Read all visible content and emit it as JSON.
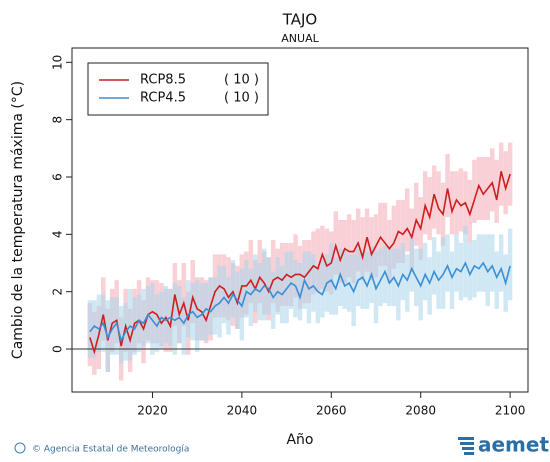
{
  "chart_data": {
    "type": "line",
    "title": "TAJO",
    "subtitle": "ANUAL",
    "y_label": "Cambio de la temperatura máxima (°C)",
    "x_label": "Año",
    "credit": "© Agencia Estatal de Meteorología",
    "logo": "aemet",
    "xlim": [
      2002,
      2104
    ],
    "xticks": [
      2020,
      2040,
      2060,
      2080,
      2100
    ],
    "ylim": [
      -1.5,
      10.5
    ],
    "yticks": [
      0,
      2,
      4,
      6,
      8,
      10
    ],
    "legend_position": "upper left",
    "x": [
      2006,
      2007,
      2008,
      2009,
      2010,
      2011,
      2012,
      2013,
      2014,
      2015,
      2016,
      2017,
      2018,
      2019,
      2020,
      2021,
      2022,
      2023,
      2024,
      2025,
      2026,
      2027,
      2028,
      2029,
      2030,
      2031,
      2032,
      2033,
      2034,
      2035,
      2036,
      2037,
      2038,
      2039,
      2040,
      2041,
      2042,
      2043,
      2044,
      2045,
      2046,
      2047,
      2048,
      2049,
      2050,
      2051,
      2052,
      2053,
      2054,
      2055,
      2056,
      2057,
      2058,
      2059,
      2060,
      2061,
      2062,
      2063,
      2064,
      2065,
      2066,
      2067,
      2068,
      2069,
      2070,
      2071,
      2072,
      2073,
      2074,
      2075,
      2076,
      2077,
      2078,
      2079,
      2080,
      2081,
      2082,
      2083,
      2084,
      2085,
      2086,
      2087,
      2088,
      2089,
      2090,
      2091,
      2092,
      2093,
      2094,
      2095,
      2096,
      2097,
      2098,
      2099,
      2100
    ],
    "series": [
      {
        "name": "RCP8.5",
        "models": "( 10 )",
        "color": "#cc1f1f",
        "band_color": "#f3aab5",
        "values": [
          0.4,
          -0.1,
          0.5,
          1.2,
          0.3,
          0.9,
          1.0,
          0.1,
          0.8,
          0.3,
          0.9,
          1.0,
          0.7,
          1.2,
          1.3,
          1.2,
          0.9,
          1.1,
          0.8,
          1.9,
          1.2,
          1.6,
          1.0,
          1.8,
          1.4,
          1.3,
          1.0,
          1.5,
          2.0,
          2.2,
          2.1,
          1.8,
          2.0,
          1.6,
          2.2,
          2.2,
          2.4,
          2.1,
          2.5,
          2.3,
          2.0,
          2.4,
          2.5,
          2.4,
          2.6,
          2.5,
          2.6,
          2.6,
          2.5,
          2.7,
          2.9,
          2.8,
          3.3,
          2.9,
          3.0,
          3.6,
          3.1,
          3.5,
          3.4,
          3.4,
          3.7,
          3.2,
          3.9,
          3.3,
          3.6,
          3.9,
          3.7,
          3.5,
          3.7,
          4.1,
          4.0,
          4.2,
          3.9,
          4.5,
          4.2,
          5.0,
          4.6,
          5.4,
          4.9,
          4.7,
          5.6,
          4.8,
          5.2,
          5.0,
          5.1,
          4.7,
          5.2,
          5.7,
          5.4,
          5.6,
          5.8,
          5.2,
          6.2,
          5.6,
          6.1
        ],
        "lower": [
          -0.6,
          -0.9,
          -0.7,
          0.3,
          -0.8,
          -0.1,
          0.2,
          -1.1,
          -0.1,
          -0.8,
          -0.1,
          0.2,
          -0.5,
          0.3,
          0.2,
          0.2,
          0.1,
          -0.1,
          -0.1,
          0.8,
          0.2,
          0.8,
          -0.2,
          0.9,
          0.3,
          0.3,
          0.2,
          0.3,
          1.1,
          1.1,
          1.1,
          1.0,
          0.8,
          0.7,
          1.1,
          1.2,
          1.6,
          0.9,
          1.6,
          1.2,
          1.0,
          1.6,
          1.3,
          1.5,
          1.5,
          1.5,
          1.8,
          1.4,
          1.6,
          1.6,
          1.9,
          2.0,
          2.1,
          2.0,
          1.9,
          2.6,
          2.3,
          2.3,
          2.5,
          2.3,
          2.7,
          2.4,
          2.7,
          2.4,
          2.5,
          2.9,
          2.9,
          2.3,
          2.8,
          3.0,
          3.0,
          3.4,
          2.7,
          3.6,
          3.1,
          4.0,
          3.8,
          4.2,
          4.0,
          3.6,
          4.6,
          4.0,
          4.0,
          4.1,
          4.0,
          3.7,
          4.4,
          4.5,
          4.5,
          4.5,
          4.8,
          4.4,
          5.0,
          4.7,
          5.0
        ],
        "upper": [
          1.6,
          1.3,
          1.5,
          2.5,
          1.4,
          2.1,
          2.4,
          1.1,
          2.1,
          1.4,
          2.1,
          2.4,
          1.7,
          2.5,
          2.4,
          2.4,
          2.3,
          2.1,
          2.1,
          3.0,
          2.4,
          3.0,
          2.0,
          3.1,
          2.5,
          2.5,
          2.4,
          2.5,
          3.3,
          3.3,
          3.3,
          3.2,
          3.0,
          2.9,
          3.3,
          3.4,
          3.8,
          3.1,
          3.8,
          3.4,
          3.2,
          3.8,
          3.5,
          3.7,
          3.7,
          3.7,
          4.0,
          3.6,
          3.8,
          3.8,
          4.1,
          4.2,
          4.3,
          4.2,
          4.1,
          4.8,
          4.5,
          4.5,
          4.7,
          4.5,
          4.9,
          4.6,
          4.9,
          4.6,
          4.7,
          5.1,
          5.1,
          4.5,
          5.0,
          5.2,
          5.2,
          5.6,
          4.9,
          5.8,
          5.3,
          6.2,
          6.0,
          6.4,
          6.2,
          5.8,
          6.8,
          6.2,
          6.2,
          6.3,
          6.2,
          5.9,
          6.6,
          6.7,
          6.7,
          6.7,
          7.0,
          6.6,
          7.2,
          6.9,
          7.2
        ]
      },
      {
        "name": "RCP4.5",
        "models": "( 10 )",
        "color": "#3a8fd6",
        "band_color": "#a9d6ec",
        "values": [
          0.6,
          0.8,
          0.7,
          0.9,
          0.4,
          0.7,
          0.9,
          0.3,
          0.6,
          0.8,
          0.7,
          1.0,
          0.9,
          1.2,
          1.0,
          0.8,
          1.1,
          1.0,
          1.1,
          1.0,
          1.1,
          0.9,
          1.2,
          1.3,
          1.1,
          1.2,
          1.4,
          1.3,
          1.5,
          1.6,
          1.8,
          1.6,
          1.9,
          1.7,
          1.5,
          2.0,
          1.9,
          2.1,
          2.0,
          2.2,
          2.1,
          1.8,
          2.0,
          1.9,
          2.1,
          2.3,
          2.2,
          1.8,
          2.4,
          2.1,
          2.2,
          2.0,
          1.9,
          2.3,
          2.4,
          2.1,
          2.6,
          2.2,
          2.3,
          2.0,
          2.4,
          2.5,
          2.2,
          2.6,
          2.1,
          2.4,
          2.7,
          2.3,
          2.5,
          2.2,
          2.6,
          2.4,
          2.8,
          2.5,
          2.2,
          2.6,
          2.3,
          2.7,
          2.4,
          2.6,
          2.9,
          2.5,
          2.8,
          2.7,
          3.0,
          2.6,
          2.9,
          2.8,
          3.0,
          2.7,
          2.9,
          2.5,
          2.8,
          2.3,
          2.9
        ],
        "lower": [
          -0.3,
          -0.3,
          -0.1,
          -0.1,
          -0.8,
          -0.2,
          -0.2,
          -0.5,
          -0.4,
          -0.4,
          -0.2,
          -0.1,
          0.1,
          0.2,
          -0.2,
          -0.1,
          0.0,
          0.2,
          0.1,
          -0.2,
          0.2,
          -0.2,
          0.4,
          0.3,
          -0.1,
          0.3,
          0.3,
          0.5,
          0.5,
          0.4,
          0.9,
          0.5,
          1.1,
          0.7,
          0.3,
          1.1,
          0.8,
          1.3,
          1.0,
          1.0,
          1.2,
          0.7,
          1.2,
          0.9,
          0.9,
          1.4,
          1.1,
          1.0,
          1.4,
          0.9,
          1.3,
          0.9,
          1.1,
          1.3,
          1.2,
          1.2,
          1.5,
          1.4,
          1.3,
          0.8,
          1.5,
          1.4,
          1.4,
          1.6,
          0.9,
          1.5,
          1.6,
          1.5,
          1.5,
          1.0,
          1.7,
          1.3,
          2.0,
          1.5,
          1.0,
          1.7,
          1.2,
          1.9,
          1.4,
          1.4,
          2.0,
          1.4,
          2.0,
          1.7,
          1.8,
          1.7,
          1.8,
          2.0,
          2.0,
          1.5,
          2.0,
          1.4,
          2.0,
          1.3,
          1.7
        ],
        "upper": [
          1.7,
          1.7,
          1.9,
          1.9,
          1.7,
          1.8,
          1.8,
          1.5,
          1.6,
          2.1,
          1.8,
          1.9,
          2.1,
          2.2,
          2.3,
          1.9,
          2.0,
          2.2,
          2.1,
          2.3,
          2.2,
          1.8,
          2.4,
          2.3,
          2.4,
          2.3,
          2.3,
          2.5,
          2.5,
          2.9,
          2.9,
          2.5,
          3.1,
          2.7,
          2.8,
          3.1,
          2.8,
          3.3,
          3.0,
          3.5,
          3.2,
          2.7,
          3.2,
          2.9,
          3.4,
          3.4,
          3.1,
          3.0,
          3.4,
          3.4,
          3.3,
          2.9,
          3.1,
          3.3,
          3.7,
          3.2,
          3.5,
          3.4,
          3.3,
          3.3,
          3.5,
          3.4,
          3.4,
          3.6,
          3.4,
          3.5,
          3.6,
          3.5,
          3.5,
          3.5,
          3.7,
          3.3,
          4.0,
          3.5,
          3.5,
          3.7,
          3.2,
          3.9,
          3.4,
          3.9,
          4.0,
          3.4,
          4.0,
          3.7,
          4.3,
          3.7,
          3.8,
          4.0,
          4.0,
          4.0,
          4.0,
          3.4,
          4.0,
          3.3,
          4.2
        ]
      }
    ]
  }
}
